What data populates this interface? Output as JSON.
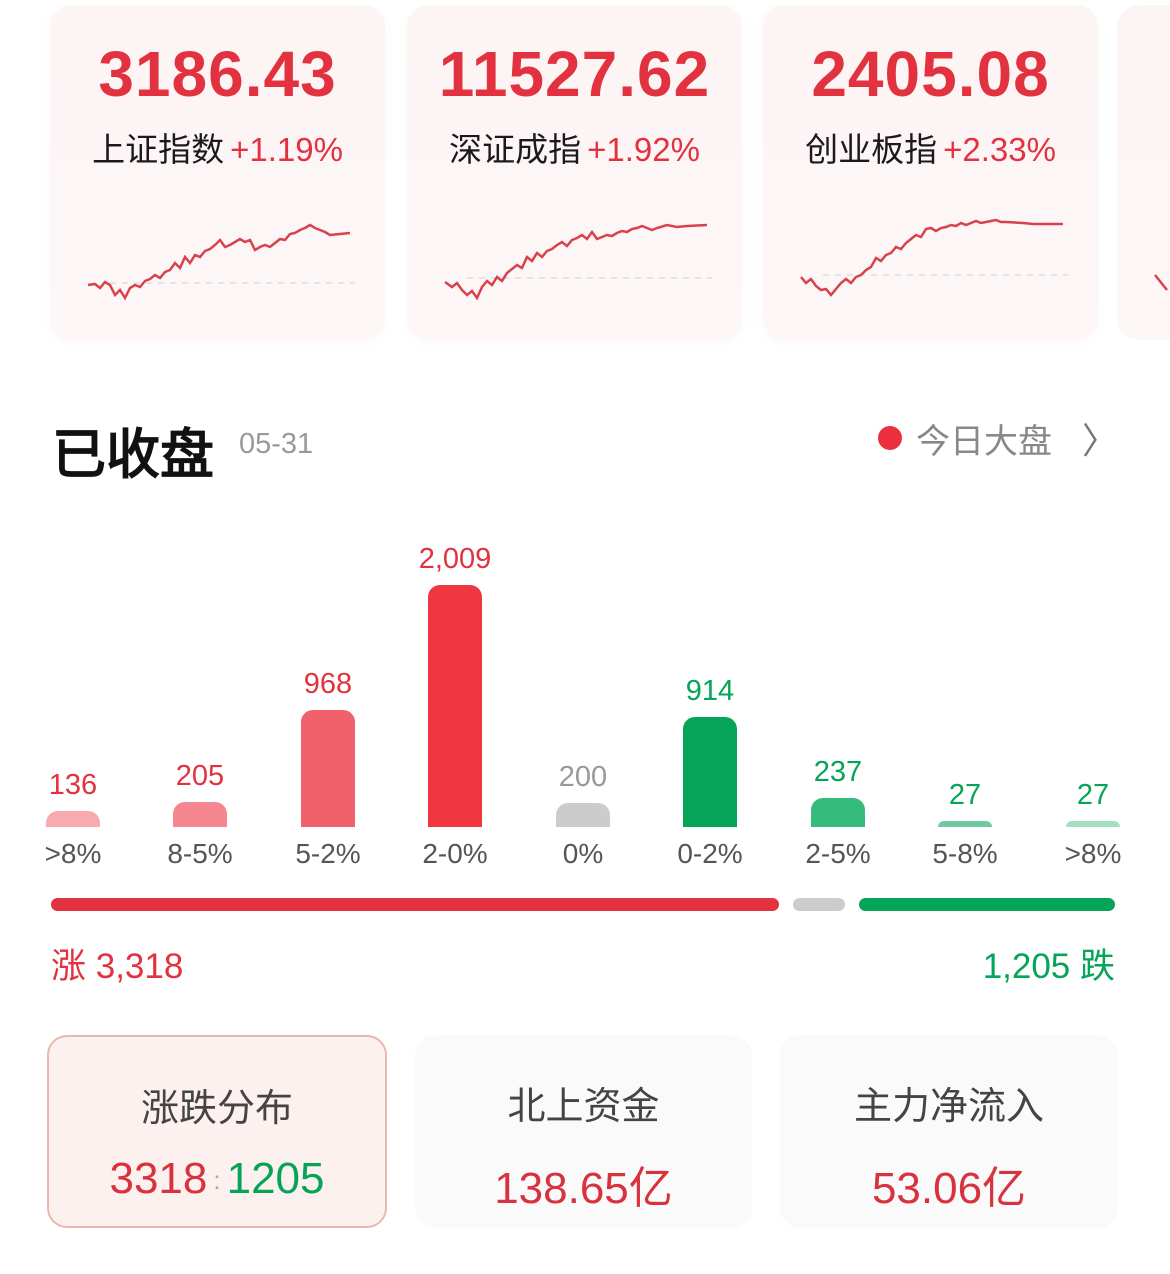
{
  "indices": [
    {
      "value": "3186.43",
      "name": "上证指数",
      "change": "+1.19%"
    },
    {
      "value": "11527.62",
      "name": "深证成指",
      "change": "+1.92%"
    },
    {
      "value": "2405.08",
      "name": "创业板指",
      "change": "+2.33%"
    }
  ],
  "section": {
    "title": "已收盘",
    "date": "05-31",
    "link_label": "今日大盘"
  },
  "colors": {
    "up": "#e2323f",
    "down": "#06a457",
    "flat": "#cccccc"
  },
  "chart_data": {
    "type": "bar",
    "categories": [
      ">8%",
      "8-5%",
      "5-2%",
      "2-0%",
      "0%",
      "0-2%",
      "2-5%",
      "5-8%",
      ">8%"
    ],
    "values": [
      136,
      205,
      968,
      2009,
      200,
      914,
      237,
      27,
      27
    ],
    "value_labels": [
      "136",
      "205",
      "968",
      "2,009",
      "200",
      "914",
      "237",
      "27",
      "27"
    ],
    "bar_colors": [
      "#f8aab0",
      "#f6868f",
      "#f1606b",
      "#f0363f",
      "#cccccc",
      "#06a457",
      "#35bb7b",
      "#6fcb9f",
      "#a4dfc2"
    ],
    "label_colors": [
      "#e2323f",
      "#e2323f",
      "#e2323f",
      "#e2323f",
      "#999999",
      "#06a457",
      "#06a457",
      "#06a457",
      "#06a457"
    ]
  },
  "summary": {
    "up_label": "涨 3,318",
    "down_label": "1,205 跌",
    "up": 3318,
    "flat": 200,
    "down": 1205
  },
  "cards": [
    {
      "title": "涨跌分布",
      "up": "3318",
      "sep": ":",
      "down": "1205"
    },
    {
      "title": "北上资金",
      "value": "138.65亿"
    },
    {
      "title": "主力净流入",
      "value": "53.06亿"
    }
  ]
}
